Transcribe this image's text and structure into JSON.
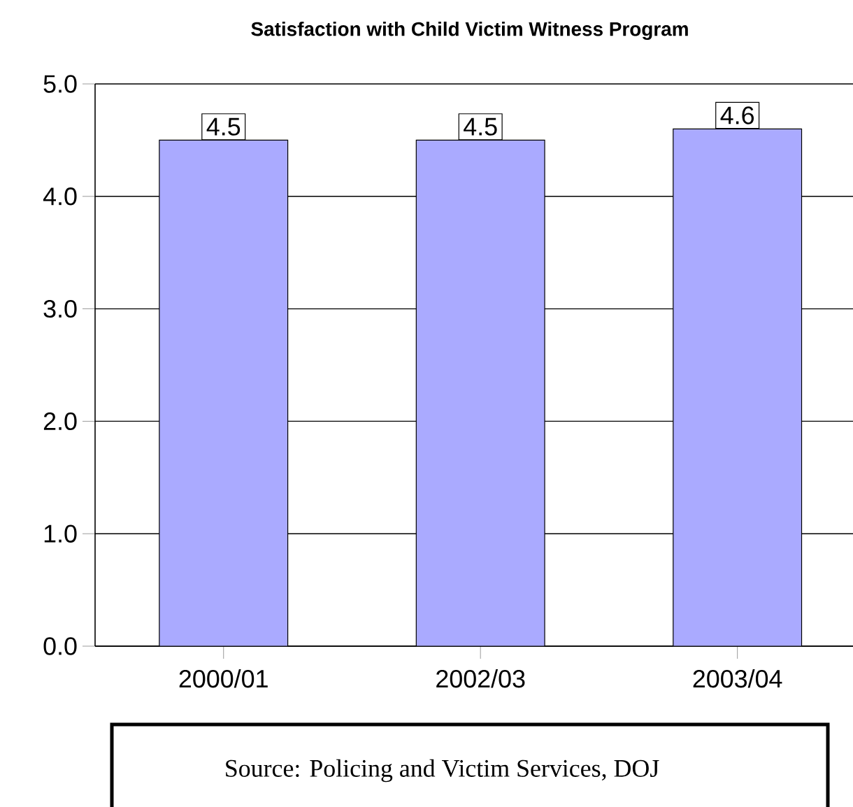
{
  "chart_data": {
    "type": "bar",
    "title": "Satisfaction with Child Victim Witness Program",
    "categories": [
      "2000/01",
      "2002/03",
      "2003/04"
    ],
    "values": [
      4.5,
      4.5,
      4.6
    ],
    "color": "#aaaaff",
    "data_labels": true,
    "ylim": [
      0,
      5
    ],
    "yticks": [
      {
        "value": 0,
        "label": "0.0"
      },
      {
        "value": 1,
        "label": "1.0"
      },
      {
        "value": 2,
        "label": "2.0"
      },
      {
        "value": 3,
        "label": "3.0"
      },
      {
        "value": 4,
        "label": "4.0"
      },
      {
        "value": 5,
        "label": "5.0"
      }
    ],
    "grid": "y",
    "annotations": [
      "Source: Policing and Victim Services, DOJ"
    ]
  }
}
